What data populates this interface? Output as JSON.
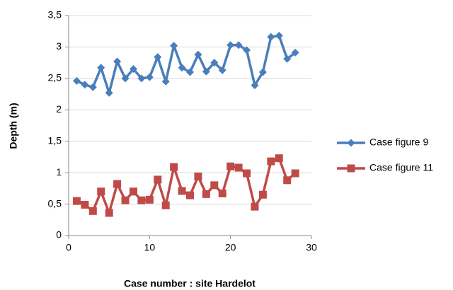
{
  "chart_data": {
    "type": "line",
    "x_label": "Case number : site Hardelot",
    "y_label": "Depth (m)",
    "x": [
      1,
      2,
      3,
      4,
      5,
      6,
      7,
      8,
      9,
      10,
      11,
      12,
      13,
      14,
      15,
      16,
      17,
      18,
      19,
      20,
      21,
      22,
      23,
      24,
      25,
      26,
      27,
      28
    ],
    "series": [
      {
        "name": "Case figure 9",
        "color": "#4a7ebb",
        "marker": "diamond",
        "values": [
          2.46,
          2.4,
          2.36,
          2.67,
          2.27,
          2.77,
          2.5,
          2.65,
          2.5,
          2.52,
          2.84,
          2.45,
          3.02,
          2.67,
          2.6,
          2.88,
          2.61,
          2.75,
          2.63,
          3.03,
          3.03,
          2.95,
          2.39,
          2.6,
          3.16,
          3.18,
          2.81,
          2.91
        ]
      },
      {
        "name": "Case figure 11",
        "color": "#be4b48",
        "marker": "square",
        "values": [
          0.55,
          0.49,
          0.39,
          0.7,
          0.36,
          0.82,
          0.56,
          0.7,
          0.56,
          0.57,
          0.89,
          0.48,
          1.09,
          0.71,
          0.64,
          0.94,
          0.66,
          0.8,
          0.67,
          1.1,
          1.08,
          0.99,
          0.46,
          0.65,
          1.18,
          1.23,
          0.88,
          0.99
        ]
      }
    ],
    "xlim": [
      0,
      30
    ],
    "xticks": [
      0,
      10,
      20,
      30
    ],
    "ylim": [
      0,
      3.5
    ],
    "yticks": [
      0,
      {
        "value": 0.5,
        "label": "0,5"
      },
      1,
      {
        "value": 1.5,
        "label": "1,5"
      },
      2,
      {
        "value": 2.5,
        "label": "2,5"
      },
      3,
      {
        "value": 3.5,
        "label": "3,5"
      }
    ],
    "grid": true,
    "legend": "right"
  }
}
